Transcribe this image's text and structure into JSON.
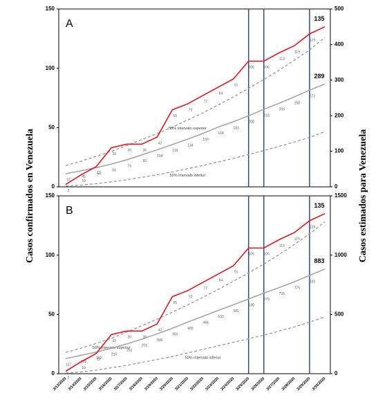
{
  "chart_data": [
    {
      "type": "line",
      "panel_label": "A",
      "ylabel": "Casos confirmados en Venezuela",
      "y2label": "Casos estimados para Venezuela",
      "ylim": [
        0,
        150
      ],
      "yticks": [
        0,
        50,
        100,
        150
      ],
      "y2lim": [
        0,
        500
      ],
      "y2ticks": [
        0,
        100,
        200,
        300,
        400,
        500
      ],
      "vlines": [
        "3/25/2020",
        "3/26/2020",
        "3/29/2020"
      ],
      "vline_color": "#2f4a9e",
      "series": [
        {
          "name": "50% intervalo superior",
          "color": "#999999",
          "dashed": true,
          "axis": "y2",
          "values": [
            60,
            72,
            86,
            100,
            116,
            133,
            150,
            168,
            188,
            208,
            230,
            253,
            277,
            302,
            328,
            356,
            385,
            420
          ]
        },
        {
          "name": "50% intervalo inferior",
          "color": "#999999",
          "dashed": true,
          "axis": "y2",
          "values": [
            2,
            5,
            9,
            14,
            20,
            27,
            34,
            42,
            51,
            60,
            70,
            80,
            91,
            102,
            114,
            126,
            139,
            155
          ]
        },
        {
          "color": "#a6a6a6",
          "axis": "y2",
          "show_values": true,
          "values": [
            37,
            45,
            54,
            64,
            76,
            90,
            104,
            119,
            134,
            150,
            168,
            183,
            200,
            218,
            235,
            253,
            272,
            289
          ]
        },
        {
          "color": "#e8141c",
          "axis": "y",
          "show_values": true,
          "values": [
            2,
            10,
            17,
            33,
            36,
            36,
            42,
            65,
            70,
            77,
            84,
            91,
            106,
            106,
            113,
            119,
            129,
            135
          ]
        }
      ]
    },
    {
      "type": "line",
      "panel_label": "B",
      "categories": [
        "3/13/2020",
        "3/14/2020",
        "3/15/2020",
        "3/16/2020",
        "3/17/2020",
        "3/18/2020",
        "3/19/2020",
        "3/20/2020",
        "3/21/2020",
        "3/22/2020",
        "3/23/2020",
        "3/24/2020",
        "3/25/2020",
        "3/26/2020",
        "3/27/2020",
        "3/28/2020",
        "3/29/2020",
        "3/30/2020"
      ],
      "ylim": [
        0,
        150
      ],
      "yticks": [
        0,
        50,
        100,
        150
      ],
      "y2lim": [
        0,
        1500
      ],
      "y2ticks": [
        0,
        500,
        1000,
        1500
      ],
      "vlines": [
        "3/25/2020",
        "3/26/2020",
        "3/29/2020"
      ],
      "vline_color": "#2f4a9e",
      "series": [
        {
          "name": "50% intervalo superior",
          "color": "#999999",
          "dashed": true,
          "axis": "y2",
          "values": [
            180,
            215,
            255,
            300,
            350,
            405,
            460,
            520,
            580,
            645,
            710,
            780,
            850,
            925,
            1005,
            1090,
            1180,
            1280
          ]
        },
        {
          "name": "50% intervalo inferior",
          "color": "#999999",
          "dashed": true,
          "axis": "y2",
          "values": [
            5,
            15,
            30,
            50,
            70,
            95,
            120,
            145,
            175,
            205,
            235,
            265,
            295,
            325,
            360,
            395,
            435,
            480
          ]
        },
        {
          "color": "#a6a6a6",
          "axis": "y2",
          "show_values": true,
          "values": [
            127,
            155,
            182,
            215,
            251,
            291,
            336,
            383,
            435,
            484,
            533,
            581,
            630,
            679,
            726,
            775,
            829,
            883
          ]
        },
        {
          "color": "#e8141c",
          "axis": "y",
          "show_values": true,
          "values": [
            2,
            10,
            17,
            33,
            36,
            36,
            42,
            65,
            70,
            77,
            84,
            91,
            106,
            106,
            113,
            119,
            129,
            135
          ]
        }
      ]
    }
  ]
}
